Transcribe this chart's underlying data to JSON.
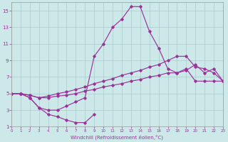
{
  "bg_color": "#cce8e8",
  "line_color": "#993399",
  "grid_color": "#aacccc",
  "xlabel": "Windchill (Refroidissement éolien,°C)",
  "xlim": [
    0,
    23
  ],
  "ylim": [
    1,
    16
  ],
  "xticks": [
    0,
    1,
    2,
    3,
    4,
    5,
    6,
    7,
    8,
    9,
    10,
    11,
    12,
    13,
    14,
    15,
    16,
    17,
    18,
    19,
    20,
    21,
    22,
    23
  ],
  "yticks": [
    1,
    3,
    5,
    7,
    9,
    11,
    13,
    15
  ],
  "lines": [
    {
      "x": [
        0,
        1,
        2,
        3,
        4,
        5,
        6,
        7,
        8,
        9,
        10,
        11,
        12,
        13,
        14,
        15,
        16,
        17,
        18,
        19,
        20,
        21,
        22,
        23
      ],
      "y": [
        5.0,
        5.0,
        4.5,
        3.3,
        3.0,
        3.0,
        3.5,
        4.0,
        4.5,
        9.5,
        11.0,
        13.0,
        14.0,
        15.5,
        15.5,
        12.5,
        10.5,
        8.0,
        7.5,
        8.0,
        6.5,
        6.5,
        6.5,
        6.5
      ]
    },
    {
      "x": [
        0,
        1,
        2,
        3,
        4,
        5,
        6,
        7,
        8,
        9
      ],
      "y": [
        5.0,
        5.0,
        4.5,
        3.3,
        2.5,
        2.2,
        1.8,
        1.5,
        1.5,
        2.5
      ]
    },
    {
      "x": [
        0,
        1,
        2,
        3,
        4,
        5,
        6,
        7,
        8,
        9,
        10,
        11,
        12,
        13,
        14,
        15,
        16,
        17,
        18,
        19,
        20,
        21,
        22,
        23
      ],
      "y": [
        5.0,
        5.0,
        4.8,
        4.5,
        4.5,
        4.7,
        4.8,
        5.0,
        5.3,
        5.5,
        5.8,
        6.0,
        6.2,
        6.5,
        6.7,
        7.0,
        7.2,
        7.5,
        7.5,
        7.8,
        8.5,
        7.5,
        8.0,
        6.5
      ]
    },
    {
      "x": [
        0,
        1,
        2,
        3,
        4,
        5,
        6,
        7,
        8,
        9,
        10,
        11,
        12,
        13,
        14,
        15,
        16,
        17,
        18,
        19,
        20,
        21,
        22,
        23
      ],
      "y": [
        5.0,
        5.0,
        4.8,
        4.5,
        4.7,
        5.0,
        5.2,
        5.5,
        5.8,
        6.2,
        6.5,
        6.8,
        7.2,
        7.5,
        7.8,
        8.2,
        8.5,
        9.0,
        9.5,
        9.5,
        8.2,
        8.0,
        7.5,
        6.5
      ]
    }
  ]
}
